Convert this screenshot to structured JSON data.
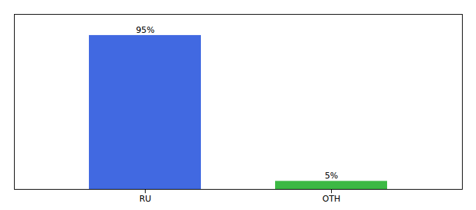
{
  "chart_data": {
    "type": "bar",
    "categories": [
      "RU",
      "OTH"
    ],
    "values": [
      95,
      5
    ],
    "value_labels": [
      "95%",
      "5%"
    ],
    "colors": [
      "#4169e1",
      "#3cb944"
    ],
    "ylim": [
      0,
      108
    ],
    "grid": false,
    "data_labels": true,
    "tick_labels": "x"
  }
}
